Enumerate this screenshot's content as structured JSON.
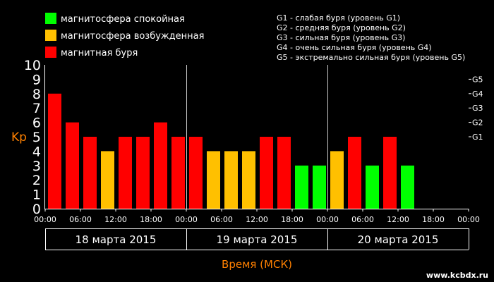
{
  "legend": {
    "items": [
      {
        "label": "магнитосфера спокойная",
        "color": "#00ff00"
      },
      {
        "label": "магнитосфера возбужденная",
        "color": "#ffc000"
      },
      {
        "label": "магнитная буря",
        "color": "#ff0000"
      }
    ],
    "storm_levels": [
      "G1 - слабая буря (уровень G1)",
      "G2 - средняя буря (уровень G2)",
      "G3 - сильная буря (уровень G3)",
      "G4 - очень сильная буря (уровень G4)",
      "G5 - экстремально сильная буря (уровень G5)"
    ]
  },
  "chart_data": {
    "type": "bar",
    "ylabel": "Kp",
    "xlabel": "Время (МСК)",
    "ylim": [
      0,
      10
    ],
    "y_ticks": [
      "0",
      "1",
      "2",
      "3",
      "4",
      "5",
      "6",
      "7",
      "8",
      "9",
      "10"
    ],
    "g_scale": [
      {
        "label": "G1",
        "kp": 5
      },
      {
        "label": "G2",
        "kp": 6
      },
      {
        "label": "G3",
        "kp": 7
      },
      {
        "label": "G4",
        "kp": 8
      },
      {
        "label": "G5",
        "kp": 9
      }
    ],
    "x_tick_labels": [
      "00:00",
      "06:00",
      "12:00",
      "18:00",
      "00:00",
      "06:00",
      "12:00",
      "18:00",
      "00:00",
      "06:00",
      "12:00",
      "18:00",
      "00:00"
    ],
    "days": [
      "18 марта 2015",
      "19 марта 2015",
      "20 марта 2015"
    ],
    "slots_per_day": 8,
    "values": [
      8,
      6,
      5,
      4,
      5,
      5,
      6,
      5,
      5,
      4,
      4,
      4,
      5,
      5,
      3,
      3,
      4,
      5,
      3,
      5,
      3
    ],
    "colors": [
      "#ff0000",
      "#ff0000",
      "#ff0000",
      "#ffc000",
      "#ff0000",
      "#ff0000",
      "#ff0000",
      "#ff0000",
      "#ff0000",
      "#ffc000",
      "#ffc000",
      "#ffc000",
      "#ff0000",
      "#ff0000",
      "#00ff00",
      "#00ff00",
      "#ffc000",
      "#ff0000",
      "#00ff00",
      "#ff0000",
      "#00ff00"
    ],
    "grid": false
  },
  "watermark": "www.kcbdx.ru",
  "style": {
    "accent_orange": "#ff8000",
    "axis_color": "#ffffff",
    "background": "#000000"
  }
}
